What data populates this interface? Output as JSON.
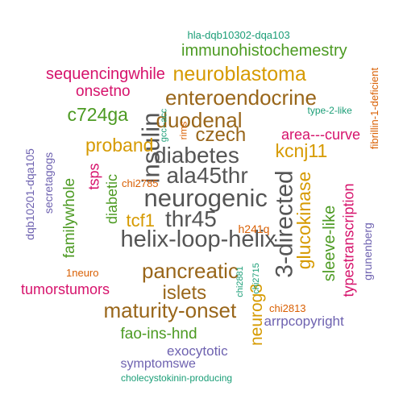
{
  "palette": {
    "gray": "#555555",
    "brown": "#99661a",
    "gold": "#d69a00",
    "green": "#4c9a22",
    "magenta": "#d6136c",
    "purple": "#6e62b0",
    "teal": "#1b9e77",
    "orange": "#d95f02"
  },
  "words": [
    {
      "text": "neurogenic",
      "color": "gray"
    },
    {
      "text": "helix-loop-helix",
      "color": "gray"
    },
    {
      "text": "diabetes",
      "color": "gray"
    },
    {
      "text": "ala45thr",
      "color": "gray"
    },
    {
      "text": "thr45",
      "color": "gray"
    },
    {
      "text": "insulin",
      "color": "gray"
    },
    {
      "text": "3-directed",
      "color": "gray"
    },
    {
      "text": "pancreatic",
      "color": "brown"
    },
    {
      "text": "maturity-onset",
      "color": "brown"
    },
    {
      "text": "duodenal",
      "color": "brown"
    },
    {
      "text": "enteroendocrine",
      "color": "brown"
    },
    {
      "text": "czech",
      "color": "brown"
    },
    {
      "text": "islets",
      "color": "brown"
    },
    {
      "text": "neuroblastoma",
      "color": "gold"
    },
    {
      "text": "proband",
      "color": "gold"
    },
    {
      "text": "kcnj11",
      "color": "gold"
    },
    {
      "text": "glucokinase",
      "color": "gold"
    },
    {
      "text": "neurog3",
      "color": "gold"
    },
    {
      "text": "tcf1",
      "color": "gold"
    },
    {
      "text": "immunohistochemestry",
      "color": "green"
    },
    {
      "text": "c724ga",
      "color": "green"
    },
    {
      "text": "fao-ins-hnd",
      "color": "green"
    },
    {
      "text": "familywhole",
      "color": "green"
    },
    {
      "text": "diabetic",
      "color": "green"
    },
    {
      "text": "sleeve-like",
      "color": "green"
    },
    {
      "text": "sequencingwhile",
      "color": "magenta"
    },
    {
      "text": "onsetno",
      "color": "magenta"
    },
    {
      "text": "area---curve",
      "color": "magenta"
    },
    {
      "text": "tsps",
      "color": "magenta"
    },
    {
      "text": "typestranscription",
      "color": "magenta"
    },
    {
      "text": "tumorstumors",
      "color": "magenta"
    },
    {
      "text": "exocytotic",
      "color": "purple"
    },
    {
      "text": "symptomswe",
      "color": "purple"
    },
    {
      "text": "arrpcopyright",
      "color": "purple"
    },
    {
      "text": "secretagogs",
      "color": "purple"
    },
    {
      "text": "dqb10201-dqa105",
      "color": "purple"
    },
    {
      "text": "grunenberg",
      "color": "purple"
    },
    {
      "text": "hla-dqb10302-dqa103",
      "color": "teal"
    },
    {
      "text": "type-2-like",
      "color": "teal"
    },
    {
      "text": "gcc--acc",
      "color": "teal"
    },
    {
      "text": "chi2881",
      "color": "teal"
    },
    {
      "text": "chi2715",
      "color": "teal"
    },
    {
      "text": "cholecystokinin-producing",
      "color": "teal"
    },
    {
      "text": "fibrillin-1-deficient",
      "color": "orange"
    },
    {
      "text": "rims",
      "color": "orange"
    },
    {
      "text": "chi2785",
      "color": "orange"
    },
    {
      "text": "h241q",
      "color": "orange"
    },
    {
      "text": "1neuro",
      "color": "orange"
    },
    {
      "text": "chi2813",
      "color": "orange"
    }
  ]
}
